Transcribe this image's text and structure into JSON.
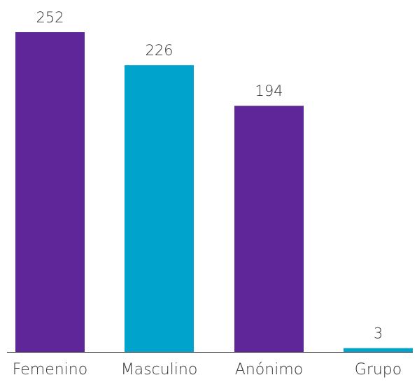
{
  "chart_data": {
    "type": "bar",
    "categories": [
      "Femenino",
      "Masculino",
      "Anónimo",
      "Grupo"
    ],
    "values": [
      252,
      226,
      194,
      3
    ],
    "data_labels": [
      "252",
      "226",
      "194",
      "3"
    ],
    "colors": [
      "#5e2699",
      "#00a3cc",
      "#5e2699",
      "#00a3cc"
    ],
    "axis_color": "#333333",
    "label_color": "#333333",
    "title": "",
    "xlabel": "",
    "ylabel": "",
    "ylim": [
      0,
      252
    ],
    "grid": false,
    "legend": "none"
  }
}
